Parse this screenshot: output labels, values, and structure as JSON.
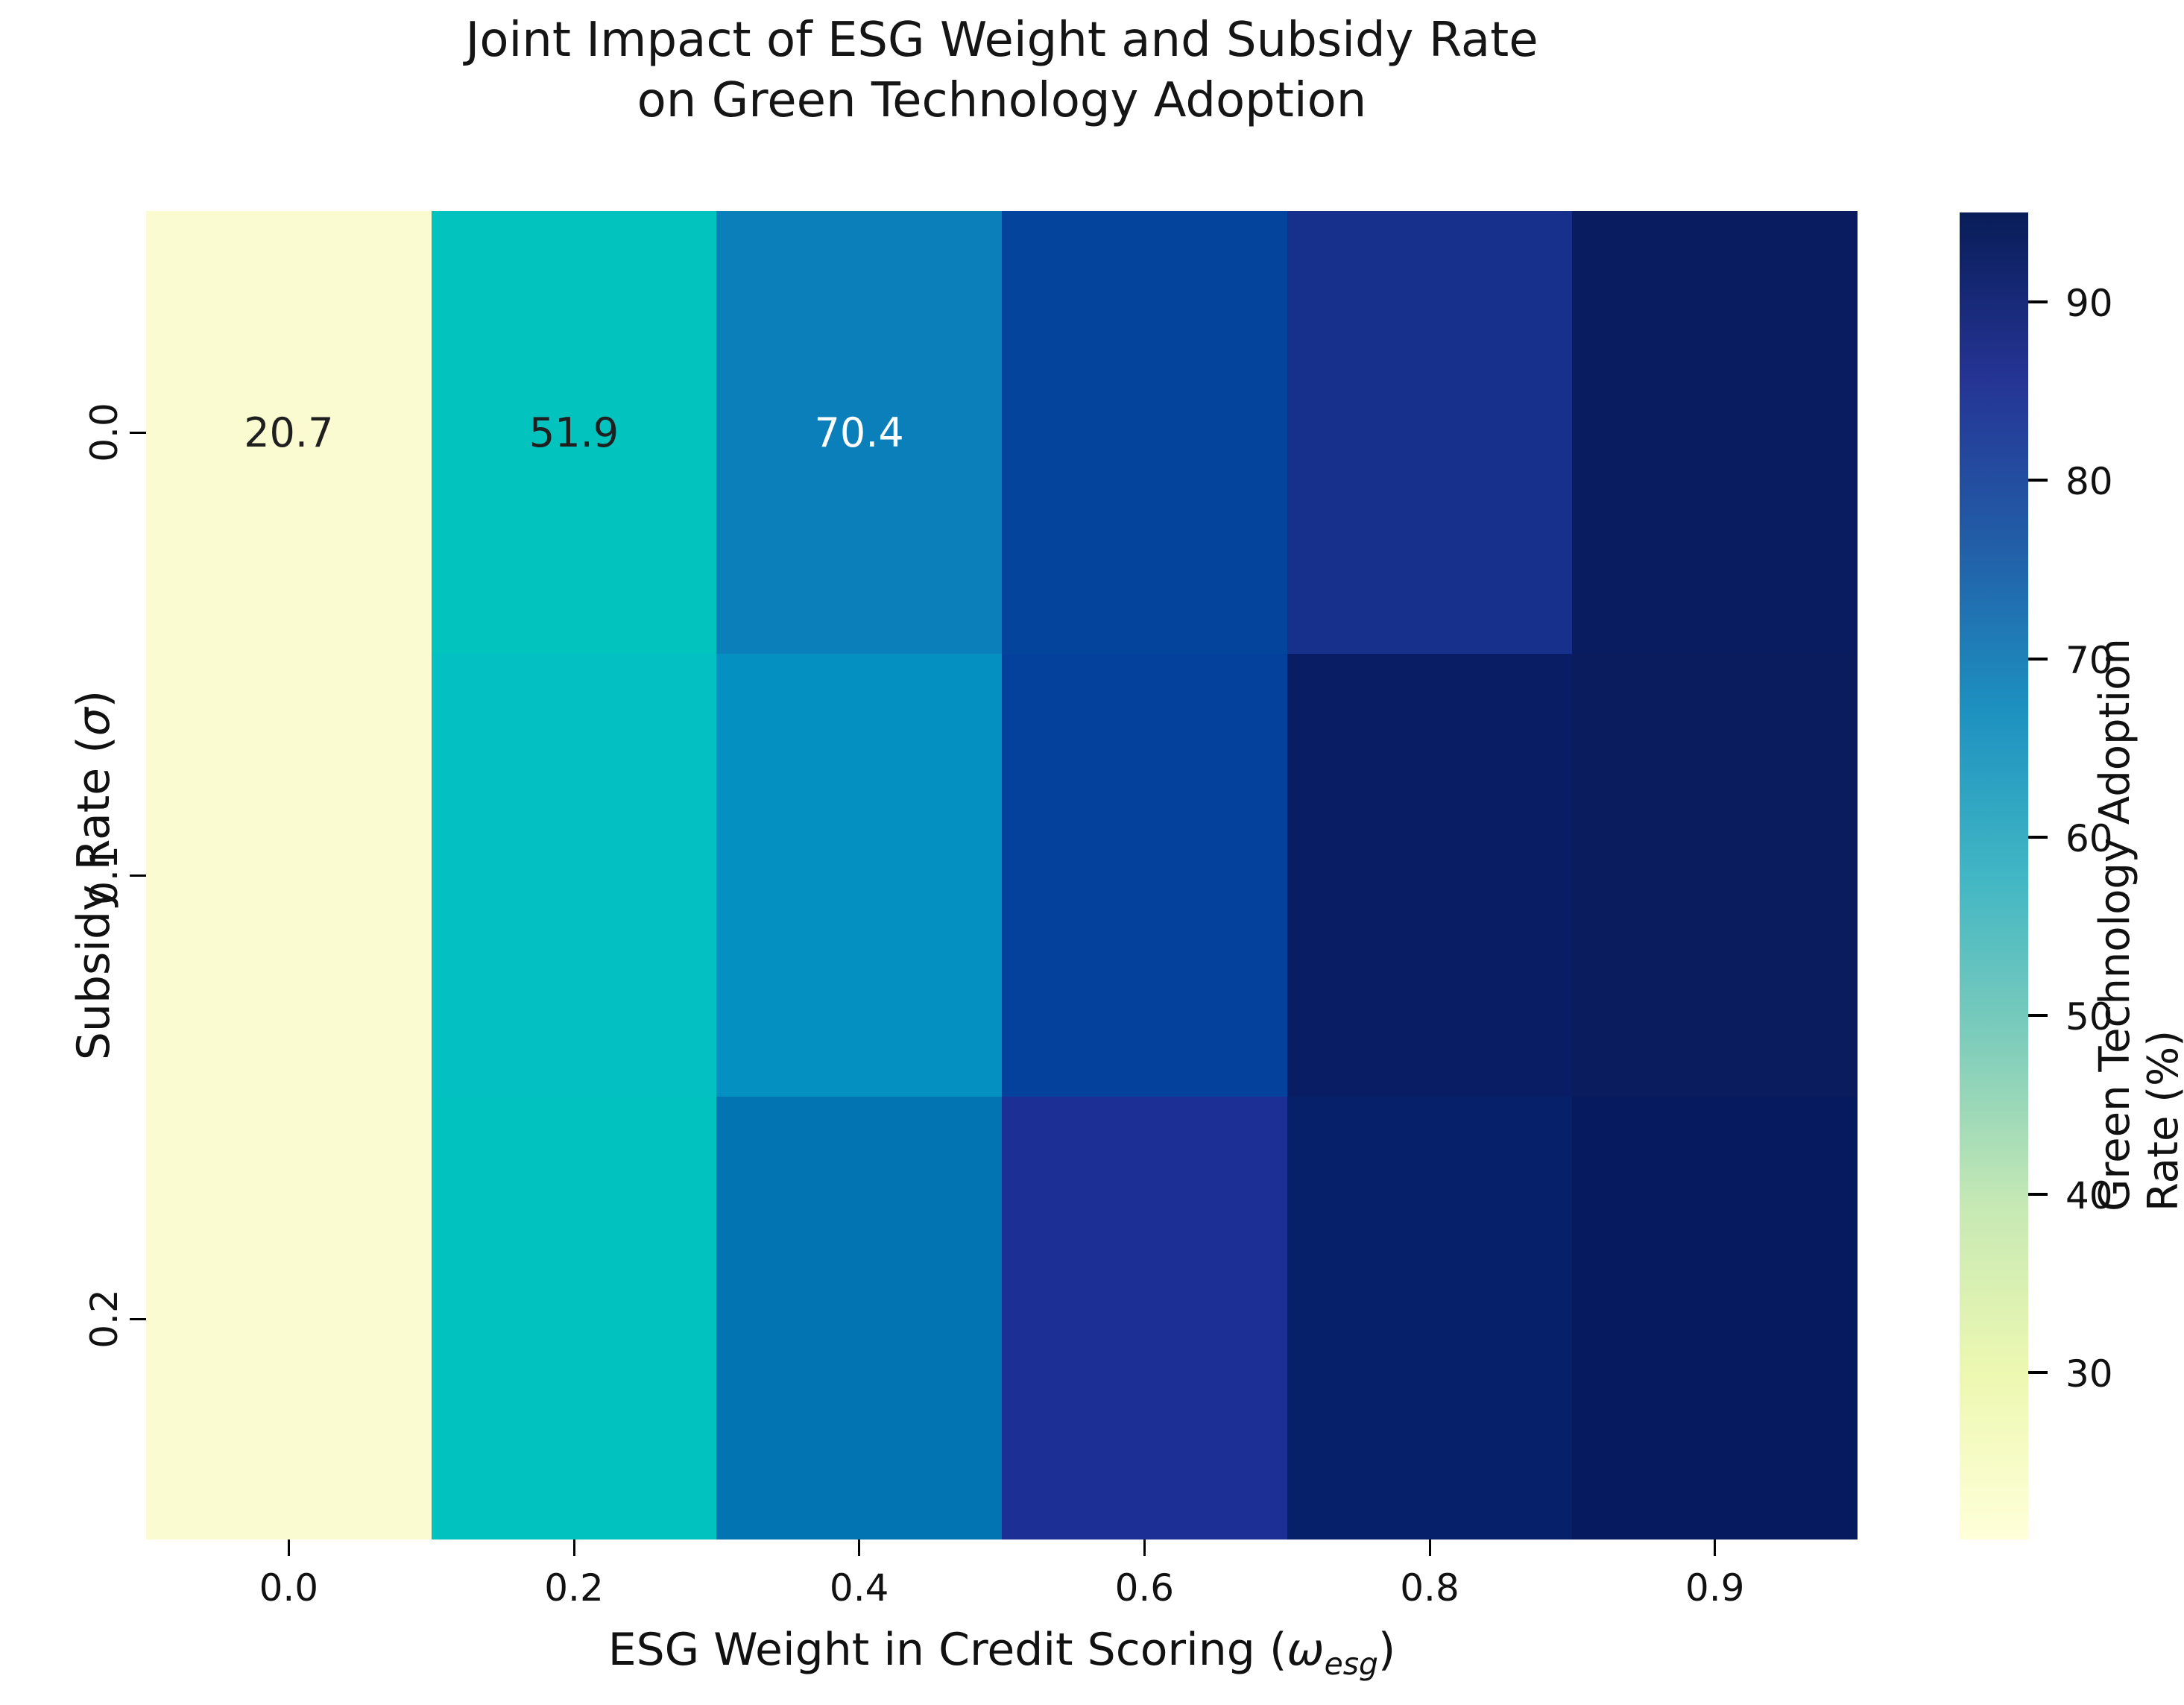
{
  "figure": {
    "title_line1": "Joint Impact of ESG Weight and Subsidy Rate",
    "title_line2": "on Green Technology Adoption"
  },
  "chart_data": {
    "type": "heatmap",
    "title": "Joint Impact of ESG Weight and Subsidy Rate\non Green Technology Adoption",
    "xlabel": "ESG Weight in Credit Scoring (ω_esg)",
    "ylabel": "Subsidy Rate (σ)",
    "xlabel_parts": {
      "prefix": "ESG Weight in Credit Scoring (",
      "symbol": "ω",
      "subscript": "esg",
      "suffix": ")"
    },
    "ylabel_parts": {
      "prefix": "Subsidy Rate (",
      "symbol": "σ",
      "suffix": ")"
    },
    "x_categories": [
      "0.0",
      "0.2",
      "0.4",
      "0.6",
      "0.8",
      "0.9"
    ],
    "y_categories": [
      "0.0",
      "0.1",
      "0.2"
    ],
    "visible_annotations": [
      {
        "x": "0.0",
        "y": "0.0",
        "label": "20.7"
      },
      {
        "x": "0.2",
        "y": "0.0",
        "label": "51.9"
      },
      {
        "x": "0.4",
        "y": "0.0",
        "label": "70.4"
      }
    ],
    "cells": [
      {
        "row": "0.0",
        "col": "0.0",
        "value_est": 20.7,
        "label": "20.7",
        "color": "#fbfbd2",
        "label_color": "#1f1f1f"
      },
      {
        "row": "0.0",
        "col": "0.2",
        "value_est": 51.9,
        "label": "51.9",
        "color": "#02c3bd",
        "label_color": "#1f1f1f"
      },
      {
        "row": "0.0",
        "col": "0.4",
        "value_est": 70.4,
        "label": "70.4",
        "color": "#0a7fba",
        "label_color": "#ffffff"
      },
      {
        "row": "0.0",
        "col": "0.6",
        "value_est": 79,
        "label": "",
        "color": "#05449c",
        "label_color": "#ffffff"
      },
      {
        "row": "0.0",
        "col": "0.8",
        "value_est": 86,
        "label": "",
        "color": "#16308b",
        "label_color": "#ffffff"
      },
      {
        "row": "0.0",
        "col": "0.9",
        "value_est": 93,
        "label": "",
        "color": "#091c60",
        "label_color": "#ffffff"
      },
      {
        "row": "0.1",
        "col": "0.0",
        "value_est": 21,
        "label": "",
        "color": "#fbfbd2",
        "label_color": "#1f1f1f"
      },
      {
        "row": "0.1",
        "col": "0.2",
        "value_est": 52,
        "label": "",
        "color": "#03c1c2",
        "label_color": "#1f1f1f"
      },
      {
        "row": "0.1",
        "col": "0.4",
        "value_est": 67,
        "label": "",
        "color": "#0490c0",
        "label_color": "#ffffff"
      },
      {
        "row": "0.1",
        "col": "0.6",
        "value_est": 80,
        "label": "",
        "color": "#03419c",
        "label_color": "#ffffff"
      },
      {
        "row": "0.1",
        "col": "0.8",
        "value_est": 91,
        "label": "",
        "color": "#081d63",
        "label_color": "#ffffff"
      },
      {
        "row": "0.1",
        "col": "0.9",
        "value_est": 93,
        "label": "",
        "color": "#0a1b5e",
        "label_color": "#ffffff"
      },
      {
        "row": "0.2",
        "col": "0.0",
        "value_est": 21,
        "label": "",
        "color": "#fbfbd2",
        "label_color": "#1f1f1f"
      },
      {
        "row": "0.2",
        "col": "0.2",
        "value_est": 52,
        "label": "",
        "color": "#02c2bf",
        "label_color": "#1f1f1f"
      },
      {
        "row": "0.2",
        "col": "0.4",
        "value_est": 69,
        "label": "",
        "color": "#0274b2",
        "label_color": "#ffffff"
      },
      {
        "row": "0.2",
        "col": "0.6",
        "value_est": 86,
        "label": "",
        "color": "#1c2f94",
        "label_color": "#ffffff"
      },
      {
        "row": "0.2",
        "col": "0.8",
        "value_est": 91,
        "label": "",
        "color": "#062069",
        "label_color": "#ffffff"
      },
      {
        "row": "0.2",
        "col": "0.9",
        "value_est": 94,
        "label": "",
        "color": "#051a5f",
        "label_color": "#ffffff"
      }
    ],
    "colorbar": {
      "label": "Green Technology Adoption Rate (%)",
      "tick_labels": [
        "90",
        "80",
        "70",
        "60",
        "50",
        "40",
        "30"
      ],
      "value_min": 20.7,
      "value_max": 95,
      "colormap": "YlGnBu",
      "gradient_top_to_bottom": [
        "#081d58",
        "#253494",
        "#225ea8",
        "#1d91c0",
        "#41b6c4",
        "#7fcdbb",
        "#c7e9b4",
        "#edf8b1",
        "#ffffd9"
      ]
    },
    "legend_position": "right",
    "grid": false
  }
}
